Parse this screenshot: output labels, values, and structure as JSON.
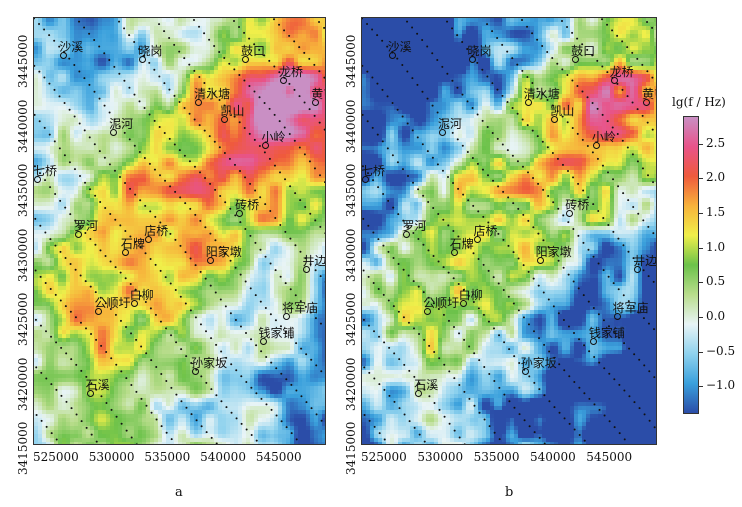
{
  "figure": {
    "colorbar": {
      "title": "lg(f / Hz)",
      "ticks": [
        "2.5",
        "2.0",
        "1.5",
        "1.0",
        "0.5",
        "0.0",
        "−0.5",
        "−1.0"
      ],
      "tick_values": [
        2.5,
        2.0,
        1.5,
        1.0,
        0.5,
        0.0,
        -0.5,
        -1.0
      ],
      "range": [
        -1.4,
        2.9
      ],
      "colors": [
        "#2b4da8",
        "#3aa0dc",
        "#8fd2ee",
        "#e8f4f6",
        "#b9dd8c",
        "#6cc24a",
        "#f0ef4a",
        "#f7b23b",
        "#ef5a3c",
        "#e8548a",
        "#c98fc4"
      ]
    },
    "x_ticks": [
      "525000",
      "530000",
      "535000",
      "540000",
      "545000"
    ],
    "y_ticks": [
      "3445000",
      "3440000",
      "3435000",
      "3430000",
      "3425000",
      "3420000",
      "3415000"
    ],
    "panels": [
      {
        "label": "a",
        "places": [
          {
            "name": "沙溪",
            "x": 0.1,
            "y": 0.06
          },
          {
            "name": "晓岗",
            "x": 0.37,
            "y": 0.07
          },
          {
            "name": "鼓口",
            "x": 0.72,
            "y": 0.07
          },
          {
            "name": "龙桥",
            "x": 0.85,
            "y": 0.12
          },
          {
            "name": "黄屯",
            "x": 0.96,
            "y": 0.17
          },
          {
            "name": "清水塘",
            "x": 0.56,
            "y": 0.17
          },
          {
            "name": "凯山",
            "x": 0.65,
            "y": 0.21
          },
          {
            "name": "泥河",
            "x": 0.27,
            "y": 0.24
          },
          {
            "name": "小岭",
            "x": 0.79,
            "y": 0.27
          },
          {
            "name": "七桥",
            "x": 0.01,
            "y": 0.35
          },
          {
            "name": "砖桥",
            "x": 0.7,
            "y": 0.43
          },
          {
            "name": "罗河",
            "x": 0.15,
            "y": 0.48
          },
          {
            "name": "店桥",
            "x": 0.39,
            "y": 0.49
          },
          {
            "name": "石牌",
            "x": 0.31,
            "y": 0.52
          },
          {
            "name": "阳家墩",
            "x": 0.6,
            "y": 0.54
          },
          {
            "name": "井边铜矿",
            "x": 0.93,
            "y": 0.56
          },
          {
            "name": "公顺圩",
            "x": 0.22,
            "y": 0.66
          },
          {
            "name": "白柳",
            "x": 0.34,
            "y": 0.64
          },
          {
            "name": "将军庙",
            "x": 0.86,
            "y": 0.67
          },
          {
            "name": "钱家铺",
            "x": 0.78,
            "y": 0.73
          },
          {
            "name": "孙家坂",
            "x": 0.55,
            "y": 0.8
          },
          {
            "name": "石溪",
            "x": 0.19,
            "y": 0.85
          }
        ]
      },
      {
        "label": "b",
        "places": [
          {
            "name": "沙溪",
            "x": 0.1,
            "y": 0.06
          },
          {
            "name": "晓岗",
            "x": 0.37,
            "y": 0.07
          },
          {
            "name": "鼓口",
            "x": 0.72,
            "y": 0.07
          },
          {
            "name": "龙桥",
            "x": 0.85,
            "y": 0.12
          },
          {
            "name": "黄屯",
            "x": 0.96,
            "y": 0.17
          },
          {
            "name": "清水塘",
            "x": 0.56,
            "y": 0.17
          },
          {
            "name": "凯山",
            "x": 0.65,
            "y": 0.21
          },
          {
            "name": "泥河",
            "x": 0.27,
            "y": 0.24
          },
          {
            "name": "小岭",
            "x": 0.79,
            "y": 0.27
          },
          {
            "name": "七桥",
            "x": 0.01,
            "y": 0.35
          },
          {
            "name": "砖桥",
            "x": 0.7,
            "y": 0.43
          },
          {
            "name": "罗河",
            "x": 0.15,
            "y": 0.48
          },
          {
            "name": "店桥",
            "x": 0.39,
            "y": 0.49
          },
          {
            "name": "石牌",
            "x": 0.31,
            "y": 0.52
          },
          {
            "name": "阳家墩",
            "x": 0.6,
            "y": 0.54
          },
          {
            "name": "井边铜矿",
            "x": 0.93,
            "y": 0.56
          },
          {
            "name": "公顺圩",
            "x": 0.22,
            "y": 0.66
          },
          {
            "name": "白柳",
            "x": 0.34,
            "y": 0.64
          },
          {
            "name": "将军庙",
            "x": 0.86,
            "y": 0.67
          },
          {
            "name": "钱家铺",
            "x": 0.78,
            "y": 0.73
          },
          {
            "name": "孙家坂",
            "x": 0.55,
            "y": 0.8
          },
          {
            "name": "石溪",
            "x": 0.19,
            "y": 0.85
          }
        ]
      }
    ]
  }
}
